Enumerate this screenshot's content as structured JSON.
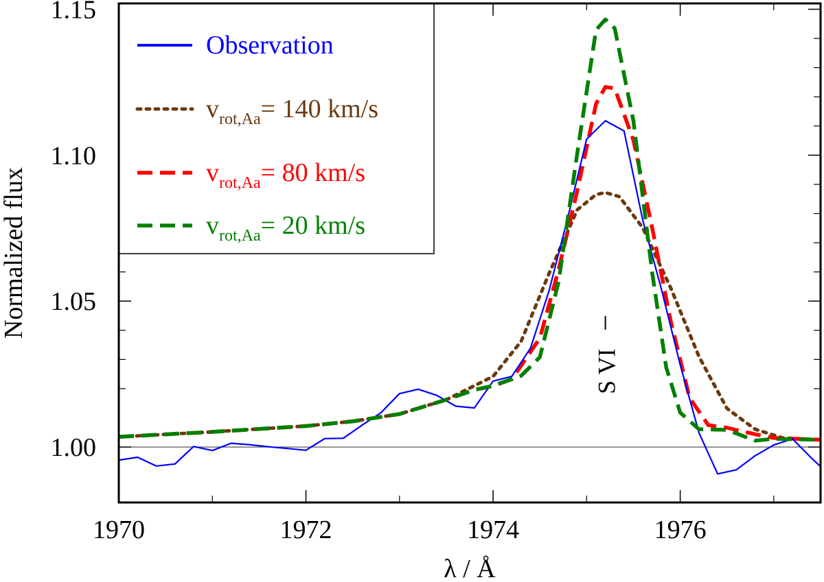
{
  "chart_data": {
    "type": "line",
    "xlabel": "λ / Å",
    "ylabel": "Normalized flux",
    "xlim": [
      1970,
      1977.5
    ],
    "ylim": [
      0.981,
      1.152
    ],
    "x_major_ticks": [
      1970,
      1972,
      1974,
      1976
    ],
    "x_tick_labels": [
      "1970",
      "1972",
      "1974",
      "1976"
    ],
    "x_minor_ticks": [
      1971,
      1973,
      1975,
      1977
    ],
    "y_major_ticks": [
      1.0,
      1.05,
      1.1,
      1.15
    ],
    "y_tick_labels": [
      "1.00",
      "1.05",
      "1.10",
      "1.15"
    ],
    "y_minor_ticks": [
      1.02,
      1.03,
      1.04,
      1.06,
      1.07,
      1.08,
      1.09,
      1.11,
      1.12,
      1.13,
      1.14
    ],
    "reference_line": 1.0,
    "annotation": {
      "text": "S VI",
      "x": 1975.2,
      "y": 1.028
    },
    "legend": {
      "position": "top-left",
      "entries": [
        {
          "series": 0,
          "text": "Observation",
          "sub": "",
          "suffix": ""
        },
        {
          "series": 1,
          "text": "v",
          "sub": "rot,Aa",
          "suffix": "= 140 km/s"
        },
        {
          "series": 2,
          "text": "v",
          "sub": "rot,Aa",
          "suffix": "= 80 km/s"
        },
        {
          "series": 3,
          "text": "v",
          "sub": "rot,Aa",
          "suffix": "= 20 km/s"
        }
      ]
    },
    "series": [
      {
        "name": "Observation",
        "color": "#0000ff",
        "dash": "solid",
        "x": [
          1970.0,
          1970.2,
          1970.4,
          1970.6,
          1970.8,
          1971.0,
          1971.2,
          1971.4,
          1971.6,
          1971.8,
          1972.0,
          1972.2,
          1972.4,
          1972.6,
          1972.8,
          1973.0,
          1973.2,
          1973.4,
          1973.6,
          1973.8,
          1974.0,
          1974.2,
          1974.4,
          1974.6,
          1974.8,
          1975.0,
          1975.2,
          1975.4,
          1975.6,
          1975.8,
          1976.0,
          1976.2,
          1976.4,
          1976.6,
          1976.8,
          1977.0,
          1977.2,
          1977.4,
          1977.5
        ],
        "y": [
          0.9955,
          0.9965,
          0.9935,
          0.9942,
          1.0002,
          0.9988,
          1.0013,
          1.0008,
          1.0001,
          0.9995,
          0.9989,
          1.0029,
          1.003,
          1.0075,
          1.0117,
          1.0183,
          1.0198,
          1.0177,
          1.014,
          1.0134,
          1.0226,
          1.0242,
          1.0339,
          1.0537,
          1.0788,
          1.1055,
          1.1118,
          1.1083,
          1.0777,
          1.054,
          1.0282,
          1.0049,
          0.9908,
          0.9922,
          0.997,
          1.0007,
          1.0028,
          0.9963,
          0.9933
        ]
      },
      {
        "name": "v_rot,Aa = 140 km/s",
        "color": "#6b3a10",
        "dash": "dotted",
        "x": [
          1970.0,
          1971.0,
          1972.0,
          1972.5,
          1973.0,
          1973.5,
          1974.0,
          1974.3,
          1974.6,
          1974.9,
          1975.1,
          1975.2,
          1975.35,
          1975.6,
          1975.9,
          1976.2,
          1976.5,
          1976.8,
          1977.1,
          1977.5
        ],
        "y": [
          1.0035,
          1.0052,
          1.0072,
          1.0088,
          1.0113,
          1.0162,
          1.0242,
          1.0362,
          1.0596,
          1.0813,
          1.0865,
          1.0872,
          1.0858,
          1.0751,
          1.0544,
          1.031,
          1.0132,
          1.0061,
          1.0031,
          1.0025
        ]
      },
      {
        "name": "v_rot,Aa = 80 km/s",
        "color": "#ff0000",
        "dash": "dashed",
        "x": [
          1970.0,
          1971.0,
          1972.0,
          1972.5,
          1973.0,
          1973.5,
          1973.8,
          1974.0,
          1974.2,
          1974.5,
          1974.7,
          1974.9,
          1975.1,
          1975.2,
          1975.3,
          1975.5,
          1975.7,
          1975.9,
          1976.1,
          1976.3,
          1976.5,
          1976.8,
          1977.0,
          1977.5
        ],
        "y": [
          1.0035,
          1.0052,
          1.0072,
          1.0088,
          1.0113,
          1.0162,
          1.0196,
          1.0209,
          1.0232,
          1.0373,
          1.0608,
          1.0878,
          1.1176,
          1.1234,
          1.1229,
          1.1051,
          1.0752,
          1.0429,
          1.0169,
          1.0075,
          1.0066,
          1.0044,
          1.0031,
          1.0025
        ]
      },
      {
        "name": "v_rot,Aa = 20 km/s",
        "color": "#008000",
        "dash": "dashed",
        "x": [
          1970.0,
          1971.0,
          1972.0,
          1972.5,
          1973.0,
          1973.5,
          1973.8,
          1974.0,
          1974.3,
          1974.5,
          1974.7,
          1974.9,
          1975.1,
          1975.2,
          1975.3,
          1975.5,
          1975.7,
          1975.85,
          1976.0,
          1976.2,
          1976.5,
          1976.8,
          1977.0,
          1977.5
        ],
        "y": [
          1.0035,
          1.0052,
          1.0072,
          1.0088,
          1.0113,
          1.0162,
          1.0196,
          1.021,
          1.0244,
          1.0308,
          1.0566,
          1.1007,
          1.1429,
          1.1465,
          1.1435,
          1.1117,
          1.0599,
          1.0273,
          1.0118,
          1.0061,
          1.0059,
          1.0022,
          1.0028,
          1.0025
        ]
      }
    ]
  }
}
